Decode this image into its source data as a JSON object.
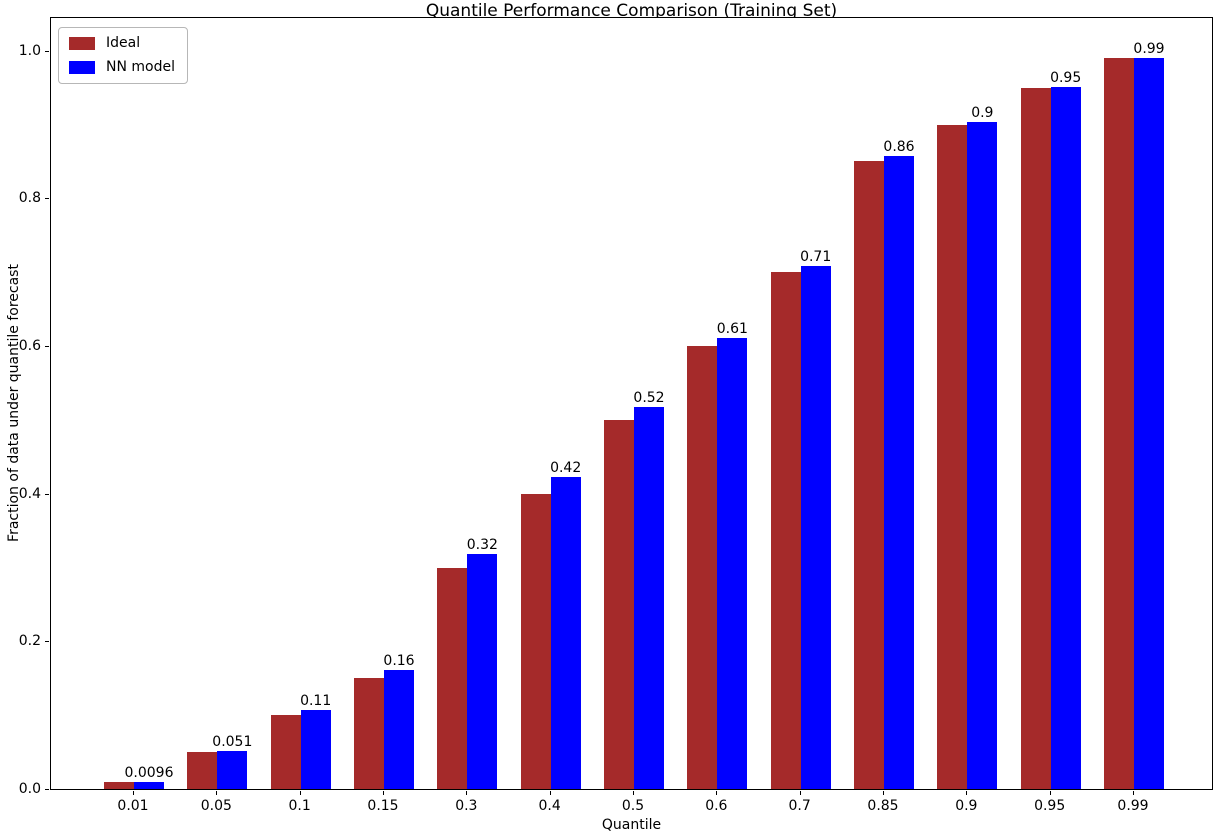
{
  "chart_data": {
    "type": "bar",
    "title": "Quantile Performance Comparison (Training Set)",
    "xlabel": "Quantile",
    "ylabel": "Fraction of data under quantile forecast",
    "categories": [
      "0.01",
      "0.05",
      "0.1",
      "0.15",
      "0.3",
      "0.4",
      "0.5",
      "0.6",
      "0.7",
      "0.85",
      "0.9",
      "0.95",
      "0.99"
    ],
    "series": [
      {
        "name": "Ideal",
        "color": "#A52A2A",
        "values": [
          0.01,
          0.05,
          0.1,
          0.15,
          0.3,
          0.4,
          0.5,
          0.6,
          0.7,
          0.85,
          0.9,
          0.95,
          0.99
        ]
      },
      {
        "name": "NN model",
        "color": "#0000FF",
        "values": [
          0.0096,
          0.051,
          0.107,
          0.161,
          0.318,
          0.422,
          0.517,
          0.611,
          0.709,
          0.858,
          0.904,
          0.951,
          0.99
        ]
      }
    ],
    "bar_labels": [
      "0.0096",
      "0.051",
      "0.11",
      "0.16",
      "0.32",
      "0.42",
      "0.52",
      "0.61",
      "0.71",
      "0.86",
      "0.9",
      "0.95",
      "0.99"
    ],
    "yticks": [
      "0.0",
      "0.2",
      "0.4",
      "0.6",
      "0.8",
      "1.0"
    ],
    "ylim": [
      0,
      1.047
    ],
    "legend_position": "upper left",
    "legend_entries": [
      "Ideal",
      "NN model"
    ],
    "grid": false,
    "text_color": "#000000",
    "background_color": "#ffffff"
  }
}
